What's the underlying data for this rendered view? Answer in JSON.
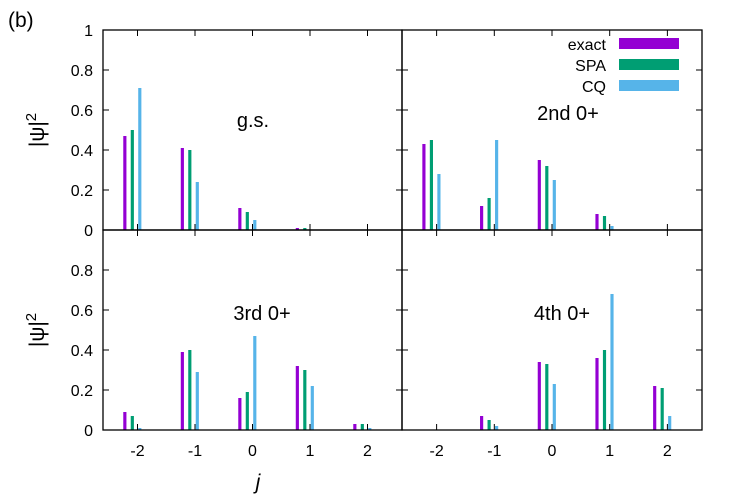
{
  "figure_label": "(b)",
  "chart_data": {
    "type": "bar",
    "xlabel": "j",
    "ylabel_base": "|ψ|",
    "ylabel_sup": "2",
    "categories": [
      "-2",
      "-1",
      "0",
      "1",
      "2"
    ],
    "x_values": [
      -2,
      -1,
      0,
      1,
      2
    ],
    "xlim": [
      -2.6,
      2.6
    ],
    "ylim": [
      0,
      1
    ],
    "yticks_top": [
      "0",
      "0.2",
      "0.4",
      "0.6",
      "0.8",
      "1"
    ],
    "yticks_bottom": [
      "0",
      "0.2",
      "0.4",
      "0.6",
      "0.8"
    ],
    "legend": {
      "placement": "top-right",
      "entries": [
        {
          "name": "exact",
          "color": "#9400D3"
        },
        {
          "name": "SPA",
          "color": "#009E73"
        },
        {
          "name": "CQ",
          "color": "#56B4E9"
        }
      ]
    },
    "panels": [
      {
        "title": "g.s.",
        "series": [
          {
            "name": "exact",
            "values": [
              0.47,
              0.41,
              0.11,
              0.01,
              0.0
            ]
          },
          {
            "name": "SPA",
            "values": [
              0.5,
              0.4,
              0.09,
              0.01,
              0.0
            ]
          },
          {
            "name": "CQ",
            "values": [
              0.71,
              0.24,
              0.05,
              0.0,
              0.0
            ]
          }
        ]
      },
      {
        "title": "2nd 0+",
        "series": [
          {
            "name": "exact",
            "values": [
              0.43,
              0.12,
              0.35,
              0.08,
              0.0
            ]
          },
          {
            "name": "SPA",
            "values": [
              0.45,
              0.16,
              0.32,
              0.07,
              0.0
            ]
          },
          {
            "name": "CQ",
            "values": [
              0.28,
              0.45,
              0.25,
              0.02,
              0.0
            ]
          }
        ]
      },
      {
        "title": "3rd 0+",
        "series": [
          {
            "name": "exact",
            "values": [
              0.09,
              0.39,
              0.16,
              0.32,
              0.03
            ]
          },
          {
            "name": "SPA",
            "values": [
              0.07,
              0.4,
              0.19,
              0.3,
              0.03
            ]
          },
          {
            "name": "CQ",
            "values": [
              0.01,
              0.29,
              0.47,
              0.22,
              0.01
            ]
          }
        ]
      },
      {
        "title": "4th 0+",
        "series": [
          {
            "name": "exact",
            "values": [
              0.0,
              0.07,
              0.34,
              0.36,
              0.22
            ]
          },
          {
            "name": "SPA",
            "values": [
              0.0,
              0.05,
              0.33,
              0.4,
              0.21
            ]
          },
          {
            "name": "CQ",
            "values": [
              0.0,
              0.02,
              0.23,
              0.68,
              0.07
            ]
          }
        ]
      }
    ]
  }
}
